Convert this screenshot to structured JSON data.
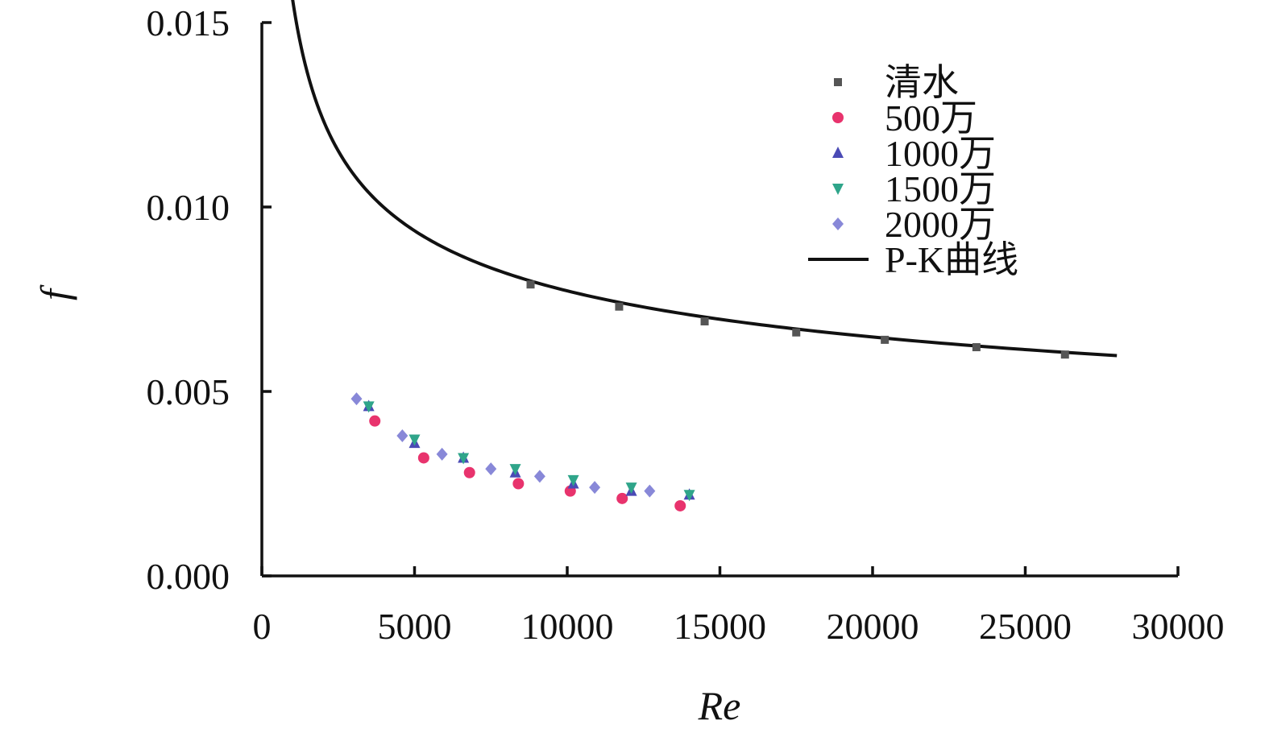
{
  "chart_data": {
    "type": "scatter",
    "title": "",
    "xlabel": "Re",
    "ylabel": "f",
    "xlim": [
      0,
      30000
    ],
    "ylim": [
      0,
      0.015
    ],
    "x_ticks": [
      0,
      5000,
      10000,
      15000,
      20000,
      25000,
      30000
    ],
    "x_tick_labels": [
      "0",
      "5000",
      "10000",
      "15000",
      "20000",
      "25000",
      "30000"
    ],
    "y_ticks": [
      0,
      0.005,
      0.01,
      0.015
    ],
    "y_tick_labels": [
      "0.000",
      "0.005",
      "0.010",
      "0.015"
    ],
    "grid": false,
    "legend_position": "top-right",
    "series": [
      {
        "name": "清水",
        "marker": "square",
        "color": "#555555",
        "x": [
          8800,
          11700,
          14500,
          17500,
          20400,
          23400,
          26300
        ],
        "y": [
          0.0079,
          0.0073,
          0.0069,
          0.0066,
          0.0064,
          0.0062,
          0.006
        ]
      },
      {
        "name": "500万",
        "marker": "circle",
        "color": "#e8336d",
        "x": [
          3700,
          5300,
          6800,
          8400,
          10100,
          11800,
          13700
        ],
        "y": [
          0.0042,
          0.0032,
          0.0028,
          0.0025,
          0.0023,
          0.0021,
          0.0019
        ]
      },
      {
        "name": "1000万",
        "marker": "triangle-up",
        "color": "#4a4ab5",
        "x": [
          3500,
          5000,
          6600,
          8300,
          10200,
          12100,
          14000
        ],
        "y": [
          0.0046,
          0.0036,
          0.0032,
          0.0028,
          0.0025,
          0.0023,
          0.0022
        ]
      },
      {
        "name": "1500万",
        "marker": "triangle-down",
        "color": "#2fa58a",
        "x": [
          3500,
          5000,
          6600,
          8300,
          10200,
          12100,
          14000
        ],
        "y": [
          0.0046,
          0.0037,
          0.0032,
          0.0029,
          0.0026,
          0.0024,
          0.0022
        ]
      },
      {
        "name": "2000万",
        "marker": "diamond",
        "color": "#8888d8",
        "x": [
          3100,
          4600,
          5900,
          7500,
          9100,
          10900,
          12700
        ],
        "y": [
          0.0048,
          0.0038,
          0.0033,
          0.0029,
          0.0027,
          0.0024,
          0.0023
        ]
      }
    ],
    "curve": {
      "name": "P-K曲线",
      "color": "#111111",
      "x_range": [
        700,
        28000
      ]
    }
  }
}
